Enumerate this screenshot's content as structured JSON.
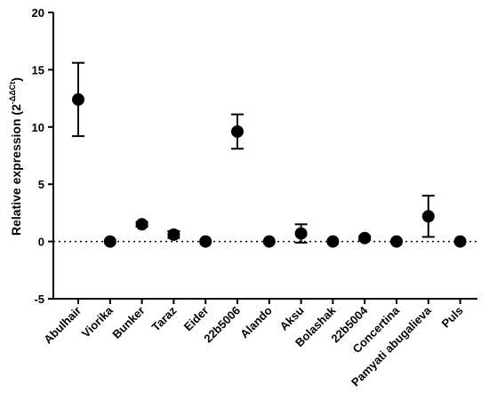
{
  "chart_data": {
    "type": "scatter",
    "title": "",
    "ylabel": "Relative expression (2",
    "ylabel_superscript": "-ΔΔCt",
    "ylabel_close": ")",
    "ylim": [
      -5,
      20
    ],
    "yticks": [
      "20",
      "15",
      "10",
      "5",
      "0",
      "-5"
    ],
    "reference_line": 0,
    "categories": [
      "Abulhair",
      "Viorika",
      "Bunker",
      "Taraz",
      "Eider",
      "22b5006",
      "Alando",
      "Aksu",
      "Bolashak",
      "22b5004",
      "Concertina",
      "Pamyati abugalieva",
      "Puls"
    ],
    "values": [
      12.4,
      0.0,
      1.5,
      0.6,
      0.0,
      9.6,
      0.0,
      0.7,
      0.0,
      0.3,
      0.0,
      2.2,
      0.0
    ],
    "errors": [
      3.2,
      0.0,
      0.2,
      0.3,
      0.0,
      1.5,
      0.0,
      0.8,
      0.0,
      0.15,
      0.0,
      1.8,
      0.0
    ]
  }
}
